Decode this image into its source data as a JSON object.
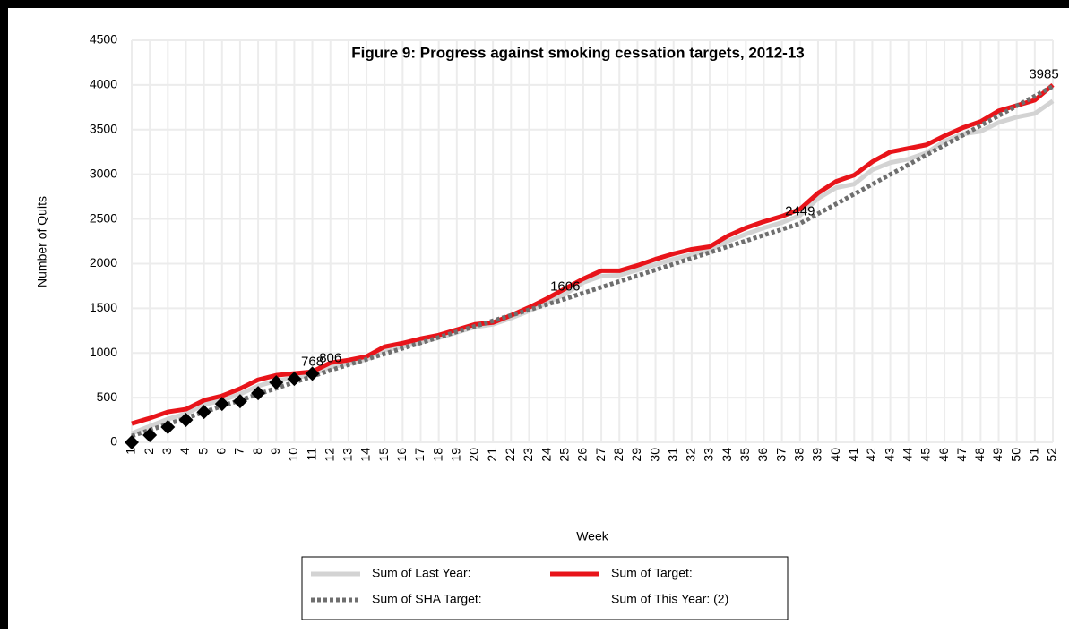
{
  "chart_data": {
    "type": "line",
    "title": "Figure 9: Progress against smoking cessation targets, 2012-13",
    "x_label": "Week",
    "y_label": "Number of Quits",
    "categories": [
      "1",
      "2",
      "3",
      "4",
      "5",
      "6",
      "7",
      "8",
      "9",
      "10",
      "11",
      "12",
      "13",
      "14",
      "15",
      "16",
      "17",
      "18",
      "19",
      "20",
      "21",
      "22",
      "23",
      "24",
      "25",
      "26",
      "27",
      "28",
      "29",
      "30",
      "31",
      "32",
      "33",
      "34",
      "35",
      "36",
      "37",
      "38",
      "39",
      "40",
      "41",
      "42",
      "43",
      "44",
      "45",
      "46",
      "47",
      "48",
      "49",
      "50",
      "51",
      "52"
    ],
    "ylim": [
      0,
      4500
    ],
    "yticks": [
      0,
      500,
      1000,
      1500,
      2000,
      2500,
      3000,
      3500,
      4000,
      4500
    ],
    "grid": true,
    "series": [
      {
        "name": "Sum of Last Year:",
        "color": "#d3d3d3",
        "line_width": 5,
        "dash": "solid",
        "marker": "none",
        "values": [
          100,
          180,
          260,
          320,
          420,
          470,
          540,
          630,
          690,
          720,
          760,
          840,
          880,
          930,
          1030,
          1070,
          1120,
          1170,
          1230,
          1290,
          1320,
          1390,
          1470,
          1560,
          1660,
          1790,
          1860,
          1870,
          1930,
          1990,
          2050,
          2100,
          2150,
          2250,
          2330,
          2400,
          2460,
          2540,
          2730,
          2850,
          2890,
          3050,
          3130,
          3170,
          3240,
          3370,
          3450,
          3480,
          3580,
          3640,
          3680,
          3820
        ]
      },
      {
        "name": "Sum of Target:",
        "color": "#e8141a",
        "line_width": 5,
        "dash": "solid",
        "marker": "none",
        "values": [
          210,
          270,
          340,
          370,
          470,
          520,
          600,
          700,
          750,
          770,
          790,
          890,
          920,
          960,
          1070,
          1110,
          1160,
          1200,
          1260,
          1320,
          1340,
          1420,
          1510,
          1610,
          1720,
          1830,
          1920,
          1920,
          1980,
          2050,
          2110,
          2160,
          2190,
          2310,
          2400,
          2470,
          2530,
          2610,
          2790,
          2920,
          2990,
          3140,
          3250,
          3290,
          3330,
          3430,
          3520,
          3590,
          3710,
          3770,
          3830,
          4000
        ]
      },
      {
        "name": "Sum of SHA Target:",
        "color": "#6e6e6e",
        "line_width": 5,
        "dash": "dotted",
        "marker": "none",
        "values": [
          70,
          137,
          204,
          271,
          338,
          405,
          471,
          538,
          605,
          672,
          739,
          806,
          868,
          929,
          991,
          1052,
          1114,
          1175,
          1237,
          1298,
          1360,
          1421,
          1483,
          1544,
          1606,
          1671,
          1736,
          1801,
          1865,
          1930,
          1995,
          2060,
          2125,
          2190,
          2254,
          2319,
          2384,
          2449,
          2559,
          2668,
          2778,
          2888,
          2998,
          3107,
          3217,
          3327,
          3436,
          3546,
          3656,
          3766,
          3875,
          3985
        ],
        "value_labels": [
          null,
          null,
          null,
          null,
          null,
          null,
          null,
          null,
          null,
          null,
          null,
          "806",
          null,
          null,
          null,
          null,
          null,
          null,
          null,
          null,
          null,
          null,
          null,
          null,
          "1606",
          null,
          null,
          null,
          null,
          null,
          null,
          null,
          null,
          null,
          null,
          null,
          null,
          "2449",
          null,
          null,
          null,
          null,
          null,
          null,
          null,
          null,
          null,
          null,
          null,
          null,
          null,
          "3985"
        ]
      },
      {
        "name": "Sum of This Year: (2)",
        "color": "#000000",
        "line_width": 0,
        "dash": "none",
        "marker": "diamond",
        "values": [
          0,
          80,
          170,
          250,
          340,
          430,
          460,
          550,
          670,
          710,
          768,
          null,
          null,
          null,
          null,
          null,
          null,
          null,
          null,
          null,
          null,
          null,
          null,
          null,
          null,
          null,
          null,
          null,
          null,
          null,
          null,
          null,
          null,
          null,
          null,
          null,
          null,
          null,
          null,
          null,
          null,
          null,
          null,
          null,
          null,
          null,
          null,
          null,
          null,
          null,
          null,
          null
        ],
        "value_labels": [
          null,
          null,
          null,
          null,
          null,
          null,
          null,
          null,
          null,
          null,
          "768",
          null,
          null,
          null,
          null,
          null,
          null,
          null,
          null,
          null,
          null,
          null,
          null,
          null,
          null,
          null,
          null,
          null,
          null,
          null,
          null,
          null,
          null,
          null,
          null,
          null,
          null,
          null,
          null,
          null,
          null,
          null,
          null,
          null,
          null,
          null,
          null,
          null,
          null,
          null,
          null,
          null
        ]
      }
    ]
  }
}
